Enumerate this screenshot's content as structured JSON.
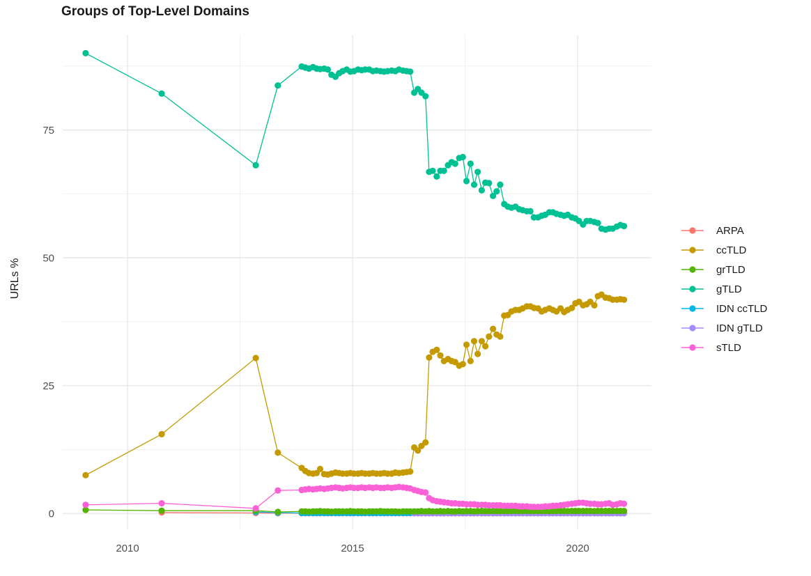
{
  "title": "Groups of Top-Level Domains",
  "colors": {
    "background": "#FFFFFF",
    "grid_major": "#E4E4E4",
    "grid_minor": "#F1F1F1",
    "tick_text": "#4D4D4D",
    "title_text": "#1A1A1A"
  },
  "chart_data": {
    "type": "line",
    "title": "Groups of Top-Level Domains",
    "xlabel": "",
    "ylabel": "URLs %",
    "x_ticks": [
      2010,
      2015,
      2020
    ],
    "x_minor_ticks": [
      2012.5,
      2017.5
    ],
    "y_ticks": [
      0,
      25,
      50,
      75
    ],
    "y_minor_ticks": [
      12.5,
      37.5,
      62.5,
      87.5
    ],
    "xlim": [
      2008.56,
      2021.64
    ],
    "ylim": [
      -3.1,
      93.6
    ],
    "grid": true,
    "legend_position": "right",
    "marker": "point",
    "x": [
      2009.07,
      2010.76,
      2012.85,
      2013.34,
      2013.87,
      2013.95,
      2014.03,
      2014.12,
      2014.2,
      2014.28,
      2014.37,
      2014.45,
      2014.53,
      2014.62,
      2014.7,
      2014.78,
      2014.87,
      2014.95,
      2015.03,
      2015.12,
      2015.2,
      2015.28,
      2015.37,
      2015.45,
      2015.53,
      2015.62,
      2015.7,
      2015.78,
      2015.87,
      2015.95,
      2016.03,
      2016.12,
      2016.2,
      2016.28,
      2016.37,
      2016.45,
      2016.53,
      2016.62,
      2016.7,
      2016.78,
      2016.87,
      2016.95,
      2017.03,
      2017.12,
      2017.2,
      2017.28,
      2017.37,
      2017.45,
      2017.53,
      2017.62,
      2017.7,
      2017.78,
      2017.87,
      2017.95,
      2018.03,
      2018.12,
      2018.2,
      2018.28,
      2018.37,
      2018.45,
      2018.53,
      2018.62,
      2018.7,
      2018.78,
      2018.87,
      2018.95,
      2019.03,
      2019.12,
      2019.2,
      2019.28,
      2019.37,
      2019.45,
      2019.53,
      2019.62,
      2019.7,
      2019.78,
      2019.87,
      2019.95,
      2020.03,
      2020.12,
      2020.2,
      2020.28,
      2020.37,
      2020.45,
      2020.53,
      2020.62,
      2020.7,
      2020.78,
      2020.87,
      2020.95,
      2021.03
    ],
    "series": [
      {
        "name": "ARPA",
        "color": "#F8766D",
        "values": [
          null,
          0.2,
          0.1,
          0.05,
          0.05,
          0.05,
          0.05,
          0.05,
          0.05,
          0.05,
          0.05,
          0.05,
          0.05,
          0.05,
          0.05,
          0.05,
          0.05,
          0.05,
          0.05,
          0.05,
          0.05,
          0.05,
          0.05,
          0.05,
          0.05,
          0.05,
          0.05,
          0.05,
          0.05,
          0.05,
          0.05,
          0.05,
          0.05,
          0.05,
          0.05,
          0.05,
          0.05,
          0.05,
          0.05,
          0.05,
          0.05,
          0.05,
          0.05,
          0.05,
          0.05,
          0.05,
          0.05,
          0.05,
          0.05,
          0.05,
          0.05,
          0.05,
          0.05,
          0.05,
          0.05,
          0.05,
          0.05,
          0.05,
          0.05,
          0.05,
          0.05,
          0.05,
          0.05,
          0.05,
          0.05,
          0.05,
          0.05,
          0.05,
          0.05,
          0.05,
          0.05,
          0.05,
          0.05,
          0.05,
          0.05,
          0.05,
          0.05,
          0.05,
          0.05,
          0.05,
          0.05,
          0.05,
          0.05,
          0.05,
          0.05,
          0.05,
          0.05,
          0.05,
          0.05,
          0.05,
          0.05
        ]
      },
      {
        "name": "ccTLD",
        "color": "#C49A00",
        "values": [
          7.5,
          15.5,
          30.4,
          11.9,
          8.9,
          8.3,
          7.9,
          7.8,
          7.9,
          8.7,
          7.7,
          7.6,
          7.8,
          8.0,
          7.9,
          7.8,
          7.8,
          7.9,
          7.8,
          7.8,
          7.9,
          7.8,
          7.8,
          7.9,
          7.8,
          7.8,
          7.9,
          7.8,
          7.8,
          8.0,
          7.9,
          8.0,
          8.1,
          8.2,
          12.9,
          12.3,
          13.2,
          13.9,
          30.5,
          31.6,
          32.0,
          30.9,
          29.8,
          30.2,
          29.8,
          29.6,
          28.9,
          29.2,
          33.0,
          29.8,
          33.7,
          31.2,
          33.7,
          32.7,
          34.6,
          36.1,
          35.0,
          34.6,
          38.7,
          38.8,
          39.5,
          39.8,
          39.8,
          40.1,
          40.5,
          40.5,
          40.2,
          40.1,
          39.5,
          39.8,
          40.1,
          39.8,
          39.5,
          40.1,
          39.4,
          39.8,
          40.2,
          41.1,
          41.4,
          40.7,
          40.9,
          41.4,
          40.7,
          42.5,
          42.8,
          42.2,
          42.1,
          41.8,
          41.8,
          41.9,
          41.8
        ]
      },
      {
        "name": "grTLD",
        "color": "#53B400",
        "values": [
          0.7,
          0.55,
          0.55,
          0.3,
          0.4,
          0.4,
          0.35,
          0.4,
          0.4,
          0.45,
          0.4,
          0.4,
          0.35,
          0.4,
          0.4,
          0.4,
          0.4,
          0.45,
          0.4,
          0.4,
          0.4,
          0.35,
          0.4,
          0.4,
          0.4,
          0.45,
          0.4,
          0.4,
          0.4,
          0.4,
          0.35,
          0.4,
          0.4,
          0.4,
          0.4,
          0.4,
          0.45,
          0.4,
          0.45,
          0.4,
          0.4,
          0.45,
          0.4,
          0.45,
          0.4,
          0.4,
          0.45,
          0.4,
          0.45,
          0.45,
          0.4,
          0.45,
          0.5,
          0.45,
          0.45,
          0.5,
          0.45,
          0.45,
          0.5,
          0.45,
          0.5,
          0.5,
          0.45,
          0.5,
          0.5,
          0.45,
          0.5,
          0.5,
          0.5,
          0.5,
          0.45,
          0.5,
          0.5,
          0.5,
          0.5,
          0.45,
          0.5,
          0.5,
          0.5,
          0.5,
          0.5,
          0.5,
          0.45,
          0.5,
          0.5,
          0.5,
          0.5,
          0.5,
          0.5,
          0.5,
          0.5
        ]
      },
      {
        "name": "gTLD",
        "color": "#00C094",
        "values": [
          90.0,
          82.1,
          68.1,
          83.7,
          87.4,
          87.2,
          87.0,
          87.3,
          87.0,
          86.9,
          87.0,
          86.8,
          85.8,
          85.4,
          86.1,
          86.5,
          86.8,
          86.4,
          86.5,
          86.8,
          86.7,
          86.8,
          86.8,
          86.5,
          86.6,
          86.5,
          86.4,
          86.5,
          86.6,
          86.5,
          86.8,
          86.6,
          86.5,
          86.4,
          82.3,
          83.0,
          82.3,
          81.6,
          66.8,
          67.0,
          65.9,
          67.0,
          67.0,
          68.1,
          68.7,
          68.4,
          69.5,
          69.7,
          65.0,
          68.4,
          64.3,
          66.8,
          63.2,
          64.7,
          64.6,
          62.1,
          63.0,
          64.3,
          60.5,
          60.0,
          59.8,
          60.0,
          59.5,
          59.3,
          59.1,
          59.1,
          57.9,
          57.9,
          58.2,
          58.4,
          58.9,
          58.9,
          58.6,
          58.4,
          58.2,
          58.4,
          57.9,
          57.7,
          57.2,
          56.5,
          57.2,
          57.2,
          57.0,
          56.8,
          55.7,
          55.5,
          55.7,
          55.7,
          56.1,
          56.4,
          56.2
        ]
      },
      {
        "name": "IDN ccTLD",
        "color": "#00B6EB",
        "values": [
          null,
          null,
          0.3,
          0.15,
          0.1,
          0.1,
          0.1,
          0.1,
          0.1,
          0.1,
          0.1,
          0.1,
          0.1,
          0.1,
          0.1,
          0.1,
          0.1,
          0.1,
          0.1,
          0.1,
          0.1,
          0.1,
          0.1,
          0.1,
          0.1,
          0.1,
          0.1,
          0.1,
          0.1,
          0.1,
          0.1,
          0.1,
          0.1,
          0.1,
          0.1,
          0.1,
          0.1,
          0.1,
          0.1,
          0.1,
          0.1,
          0.1,
          0.1,
          0.1,
          0.1,
          0.1,
          0.1,
          0.1,
          0.1,
          0.1,
          0.1,
          0.1,
          0.1,
          0.1,
          0.1,
          0.1,
          0.1,
          0.1,
          0.1,
          0.1,
          0.1,
          0.1,
          0.1,
          0.1,
          0.1,
          0.1,
          0.1,
          0.1,
          0.1,
          0.1,
          0.1,
          0.1,
          0.1,
          0.1,
          0.1,
          0.1,
          0.1,
          0.1,
          0.1,
          0.1,
          0.1,
          0.1,
          0.1,
          0.1,
          0.1,
          0.1,
          0.1,
          0.1,
          0.1,
          0.1,
          0.1
        ]
      },
      {
        "name": "IDN gTLD",
        "color": "#A58AFF",
        "values": [
          null,
          null,
          null,
          null,
          null,
          null,
          null,
          null,
          null,
          null,
          null,
          null,
          null,
          null,
          null,
          null,
          null,
          null,
          null,
          null,
          null,
          null,
          null,
          null,
          null,
          null,
          null,
          null,
          null,
          null,
          null,
          null,
          null,
          null,
          0.05,
          0.05,
          0.05,
          0.05,
          0.05,
          0.05,
          0.05,
          0.05,
          0.05,
          0.05,
          0.05,
          0.05,
          0.05,
          0.05,
          0.05,
          0.05,
          0.05,
          0.05,
          0.05,
          0.05,
          0.05,
          0.05,
          0.05,
          0.05,
          0.05,
          0.05,
          0.05,
          0.05,
          0.05,
          0.05,
          0.05,
          0.05,
          0.05,
          0.05,
          0.05,
          0.05,
          0.05,
          0.05,
          0.05,
          0.05,
          0.05,
          0.05,
          0.05,
          0.05,
          0.05,
          0.05,
          0.05,
          0.05,
          0.05,
          0.05,
          0.05,
          0.05,
          0.05,
          0.05,
          0.05,
          0.05,
          0.05
        ]
      },
      {
        "name": "sTLD",
        "color": "#FB61D7",
        "values": [
          1.7,
          2.0,
          1.0,
          4.5,
          4.6,
          4.7,
          4.8,
          4.7,
          4.8,
          4.9,
          4.8,
          4.9,
          5.0,
          5.1,
          5.0,
          4.9,
          5.0,
          5.1,
          5.0,
          5.0,
          5.1,
          5.0,
          5.1,
          5.0,
          5.1,
          5.0,
          5.0,
          5.1,
          5.0,
          5.1,
          5.2,
          5.1,
          5.0,
          4.9,
          4.6,
          4.4,
          4.2,
          4.1,
          3.0,
          2.6,
          2.4,
          2.3,
          2.2,
          2.1,
          2.0,
          2.0,
          1.9,
          1.9,
          1.8,
          1.8,
          1.8,
          1.7,
          1.7,
          1.7,
          1.6,
          1.6,
          1.6,
          1.6,
          1.5,
          1.5,
          1.5,
          1.5,
          1.4,
          1.4,
          1.4,
          1.3,
          1.3,
          1.3,
          1.3,
          1.4,
          1.4,
          1.5,
          1.5,
          1.6,
          1.7,
          1.8,
          1.9,
          2.0,
          2.1,
          2.1,
          2.0,
          1.9,
          1.9,
          1.8,
          1.8,
          1.9,
          2.0,
          1.7,
          1.8,
          2.0,
          1.9
        ]
      }
    ],
    "draw_order": [
      "ARPA",
      "IDN ccTLD",
      "IDN gTLD",
      "ccTLD",
      "grTLD",
      "gTLD",
      "sTLD"
    ]
  }
}
